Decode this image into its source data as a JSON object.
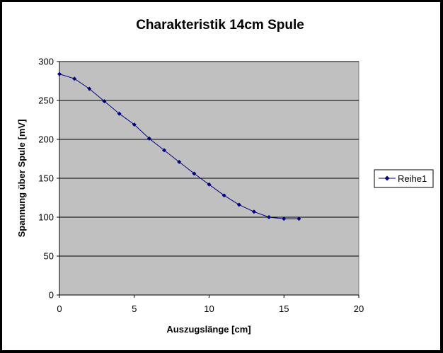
{
  "chart_data": {
    "type": "line",
    "title": "Charakteristik 14cm Spule",
    "xlabel": "Auszugslänge [cm]",
    "ylabel": "Spannung über Spule [mV]",
    "xlim": [
      0,
      20
    ],
    "ylim": [
      0,
      300
    ],
    "xticks": [
      0,
      5,
      10,
      15,
      20
    ],
    "yticks": [
      0,
      50,
      100,
      150,
      200,
      250,
      300
    ],
    "grid": "horizontal major gridlines",
    "plot_background": "#c0c0c0",
    "legend_position": "right",
    "series": [
      {
        "name": "Reihe1",
        "color": "#000080",
        "marker": "diamond",
        "x": [
          0,
          1,
          2,
          3,
          4,
          5,
          6,
          7,
          8,
          9,
          10,
          11,
          12,
          13,
          14,
          15,
          16
        ],
        "y": [
          284,
          278,
          265,
          249,
          233,
          219,
          201,
          186,
          171,
          156,
          142,
          128,
          116,
          107,
          100,
          98,
          98
        ]
      }
    ]
  }
}
